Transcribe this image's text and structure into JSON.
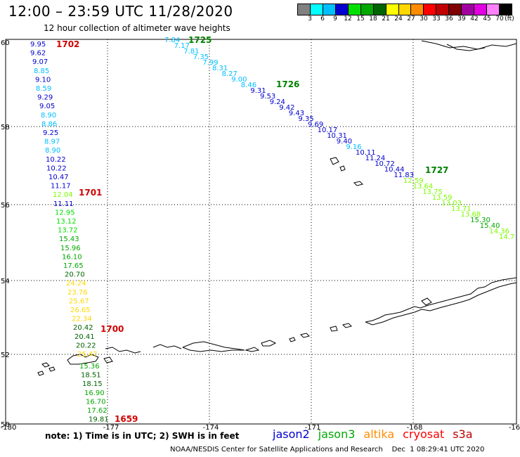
{
  "header": {
    "title": "12:00 – 23:59 UTC 11/28/2020",
    "subtitle": "12 hour collection of altimeter wave heights"
  },
  "legend": {
    "unit": "(ft)",
    "bins": [
      {
        "label": "3",
        "color": "#808080"
      },
      {
        "label": "6",
        "color": "#00ffff"
      },
      {
        "label": "9",
        "color": "#00bfff"
      },
      {
        "label": "12",
        "color": "#0000d0"
      },
      {
        "label": "15",
        "color": "#00e000"
      },
      {
        "label": "18",
        "color": "#00a800"
      },
      {
        "label": "21",
        "color": "#006400"
      },
      {
        "label": "24",
        "color": "#ffff00"
      },
      {
        "label": "27",
        "color": "#ffd700"
      },
      {
        "label": "30",
        "color": "#ff8c00"
      },
      {
        "label": "33",
        "color": "#ff0000"
      },
      {
        "label": "36",
        "color": "#c00000"
      },
      {
        "label": "39",
        "color": "#800000"
      },
      {
        "label": "42",
        "color": "#a000a0"
      },
      {
        "label": "45",
        "color": "#e000e0"
      },
      {
        "label": "70",
        "color": "#ff80ff"
      },
      {
        "label": "",
        "color": "#000000"
      }
    ]
  },
  "axes": {
    "lat_labels": [
      "60",
      "58",
      "56",
      "54",
      "52",
      "50"
    ],
    "lon_labels": [
      "-180",
      "-177",
      "-174",
      "-171",
      "-168",
      "-16"
    ]
  },
  "passes": [
    "1702",
    "1701",
    "1700",
    "1659",
    "1725",
    "1726",
    "1727"
  ],
  "tracks": {
    "left_track": [
      {
        "value": "9.95",
        "color": "#0000d0"
      },
      {
        "value": "9.62",
        "color": "#0000d0"
      },
      {
        "value": "9.07",
        "color": "#0000d0"
      },
      {
        "value": "8.85",
        "color": "#00bfff"
      },
      {
        "value": "9.10",
        "color": "#0000d0"
      },
      {
        "value": "8.59",
        "color": "#00bfff"
      },
      {
        "value": "9.29",
        "color": "#0000d0"
      },
      {
        "value": "9.05",
        "color": "#0000d0"
      },
      {
        "value": "8.90",
        "color": "#00bfff"
      },
      {
        "value": "8.86",
        "color": "#00bfff"
      },
      {
        "value": "9.25",
        "color": "#0000d0"
      },
      {
        "value": "8.97",
        "color": "#00bfff"
      },
      {
        "value": "8.90",
        "color": "#00bfff"
      },
      {
        "value": "10.22",
        "color": "#0000d0"
      },
      {
        "value": "10.22",
        "color": "#0000d0"
      },
      {
        "value": "10.47",
        "color": "#0000d0"
      },
      {
        "value": "11.17",
        "color": "#0000d0"
      },
      {
        "value": "12.04",
        "color": "#7cfc00"
      },
      {
        "value": "11.11",
        "color": "#0000d0"
      },
      {
        "value": "12.95",
        "color": "#00e000"
      },
      {
        "value": "13.12",
        "color": "#00e000"
      },
      {
        "value": "13.72",
        "color": "#00e000"
      },
      {
        "value": "15.43",
        "color": "#00a800"
      },
      {
        "value": "15.96",
        "color": "#00a800"
      },
      {
        "value": "16.10",
        "color": "#00a800"
      },
      {
        "value": "17.65",
        "color": "#00a800"
      },
      {
        "value": "20.70",
        "color": "#006400"
      },
      {
        "value": "24.24",
        "color": "#ffd700"
      },
      {
        "value": "23.76",
        "color": "#ffd700"
      },
      {
        "value": "25.67",
        "color": "#ffd700"
      },
      {
        "value": "26.65",
        "color": "#ffd700"
      },
      {
        "value": "22.34",
        "color": "#ffd700"
      },
      {
        "value": "20.42",
        "color": "#006400"
      },
      {
        "value": "20.41",
        "color": "#006400"
      },
      {
        "value": "20.22",
        "color": "#006400"
      },
      {
        "value": "25.47",
        "color": "#ffd700"
      },
      {
        "value": "15.36",
        "color": "#00a800"
      },
      {
        "value": "18.51",
        "color": "#006400"
      },
      {
        "value": "18.15",
        "color": "#006400"
      },
      {
        "value": "16.90",
        "color": "#00a800"
      },
      {
        "value": "16.70",
        "color": "#00a800"
      },
      {
        "value": "17.62",
        "color": "#00a800"
      },
      {
        "value": "19.81",
        "color": "#006400"
      }
    ],
    "diag_track": [
      {
        "value": "7.84",
        "color": "#00bfff"
      },
      {
        "value": "7.17",
        "color": "#00bfff"
      },
      {
        "value": "7.81",
        "color": "#00bfff"
      },
      {
        "value": "7.35",
        "color": "#00bfff"
      },
      {
        "value": "7.99",
        "color": "#00bfff"
      },
      {
        "value": "8.31",
        "color": "#00bfff"
      },
      {
        "value": "8.27",
        "color": "#00bfff"
      },
      {
        "value": "9.00",
        "color": "#00bfff"
      },
      {
        "value": "8.46",
        "color": "#00bfff"
      },
      {
        "value": "9.31",
        "color": "#0000d0"
      },
      {
        "value": "9.53",
        "color": "#0000d0"
      },
      {
        "value": "9.24",
        "color": "#0000d0"
      },
      {
        "value": "9.42",
        "color": "#0000d0"
      },
      {
        "value": "9.43",
        "color": "#0000d0"
      },
      {
        "value": "9.35",
        "color": "#0000d0"
      },
      {
        "value": "9.69",
        "color": "#0000d0"
      },
      {
        "value": "10.17",
        "color": "#0000d0"
      },
      {
        "value": "10.31",
        "color": "#0000d0"
      },
      {
        "value": "9.40",
        "color": "#0000d0"
      },
      {
        "value": "9.16",
        "color": "#00bfff"
      },
      {
        "value": "10.11",
        "color": "#0000d0"
      },
      {
        "value": "11.24",
        "color": "#0000d0"
      },
      {
        "value": "10.72",
        "color": "#0000d0"
      },
      {
        "value": "10.44",
        "color": "#0000d0"
      },
      {
        "value": "11.83",
        "color": "#0000d0"
      },
      {
        "value": "12.59",
        "color": "#7cfc00"
      },
      {
        "value": "13.64",
        "color": "#7cfc00"
      },
      {
        "value": "13.75",
        "color": "#7cfc00"
      },
      {
        "value": "13.59",
        "color": "#7cfc00"
      },
      {
        "value": "13.03",
        "color": "#7cfc00"
      },
      {
        "value": "13.71",
        "color": "#7cfc00"
      },
      {
        "value": "13.68",
        "color": "#7cfc00"
      },
      {
        "value": "15.30",
        "color": "#00a800"
      },
      {
        "value": "15.40",
        "color": "#00a800"
      },
      {
        "value": "14.36",
        "color": "#7cfc00"
      },
      {
        "value": "14.7",
        "color": "#7cfc00"
      }
    ]
  },
  "note": "note: 1) Time is in UTC; 2) SWH is in feet",
  "satellites": [
    {
      "name": "jason2",
      "color": "#0000d0"
    },
    {
      "name": "jason3",
      "color": "#00a800"
    },
    {
      "name": "altika",
      "color": "#ff8c00"
    },
    {
      "name": "cryosat",
      "color": "#ff0000"
    },
    {
      "name": "s3a",
      "color": "#c00000"
    }
  ],
  "footer": "NOAA/NESDIS Center for Satellite Applications and Research    Dec  1 08:29:41 UTC 2020"
}
